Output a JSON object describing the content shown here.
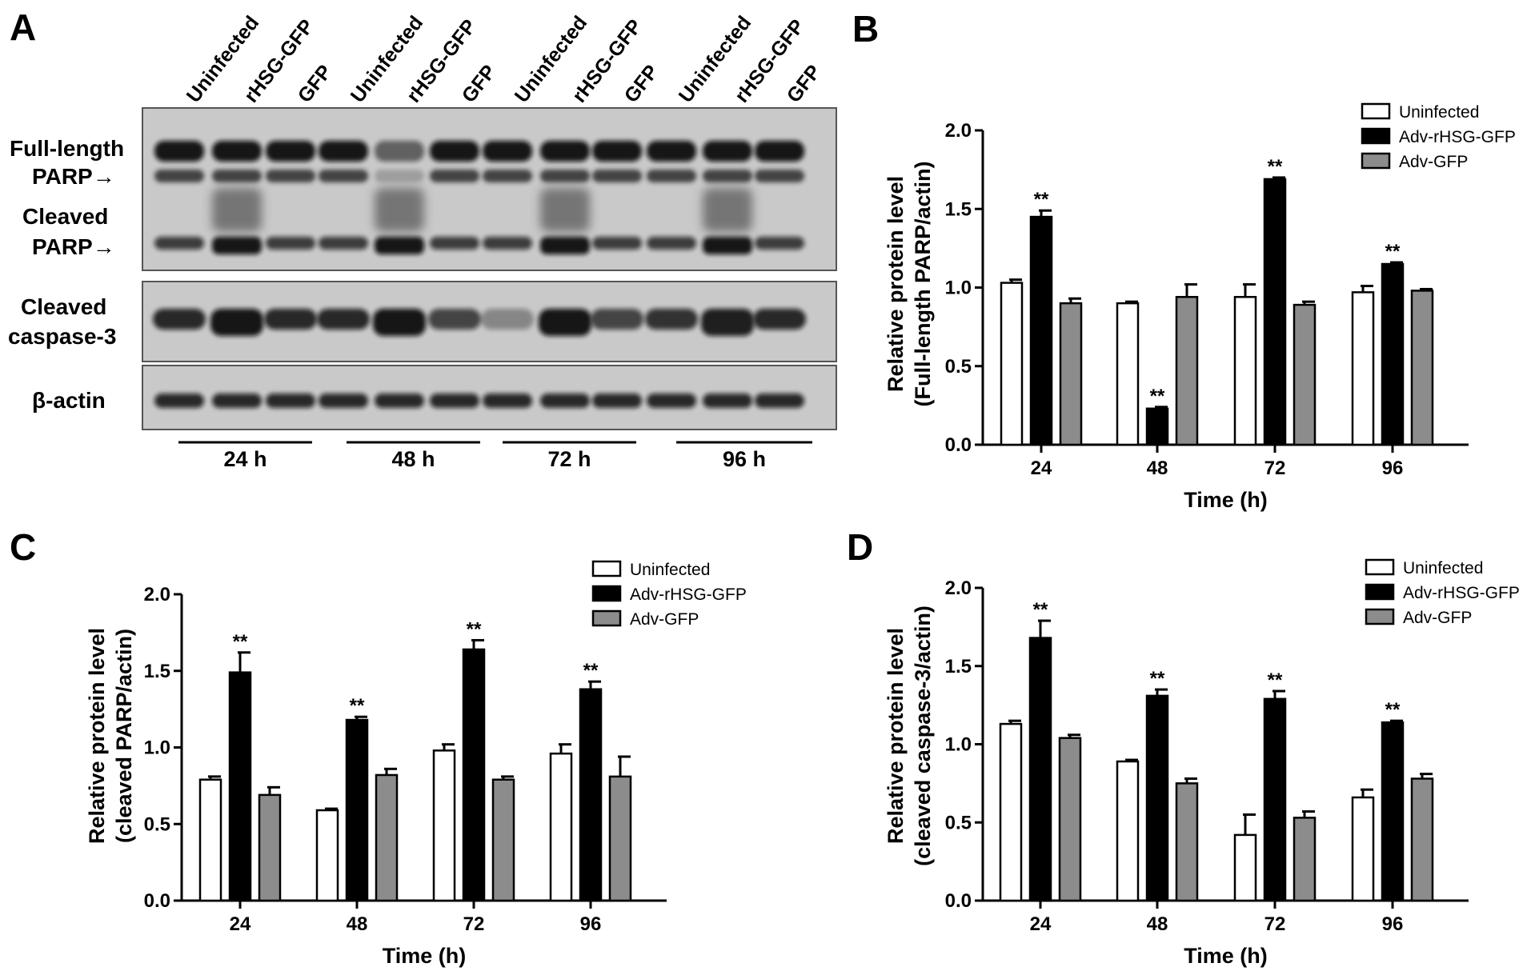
{
  "panel_letters": [
    "A",
    "B",
    "C",
    "D"
  ],
  "western_blot": {
    "lanes": [
      "Uninfected",
      "rHSG-GFP",
      "GFP",
      "Uninfected",
      "rHSG-GFP",
      "GFP",
      "Uninfected",
      "rHSG-GFP",
      "GFP",
      "Uninfected",
      "rHSG-GFP",
      "GFP"
    ],
    "row_labels": {
      "full_length_1": "Full-length",
      "full_length_2": "PARP→",
      "cleaved_parp_1": "Cleaved",
      "cleaved_parp_2": "PARP→",
      "cleaved_casp_1": "Cleaved",
      "cleaved_casp_2": "caspase-3",
      "actin": "β-actin"
    },
    "time_groups": [
      "24  h",
      "48  h",
      "72  h",
      "96  h"
    ]
  },
  "chart_data": [
    {
      "panel": "B",
      "type": "bar",
      "categories": [
        "24",
        "48",
        "72",
        "96"
      ],
      "series": [
        {
          "name": "Uninfected",
          "values": [
            1.03,
            0.9,
            0.94,
            0.97
          ],
          "errors": [
            0.02,
            0.01,
            0.08,
            0.04
          ]
        },
        {
          "name": "Adv-rHSG-GFP",
          "values": [
            1.45,
            0.23,
            1.69,
            1.15
          ],
          "errors": [
            0.04,
            0.01,
            0.01,
            0.01
          ]
        },
        {
          "name": "Adv-GFP",
          "values": [
            0.9,
            0.94,
            0.89,
            0.98
          ],
          "errors": [
            0.03,
            0.08,
            0.02,
            0.01
          ]
        }
      ],
      "annotations": [
        "**",
        "**",
        "**",
        "**"
      ],
      "xlabel": "Time  (h)",
      "ylabel": [
        "Relative protein level",
        "(Full-length PARP/actin)"
      ],
      "ylim": [
        0,
        2.0
      ],
      "yticks": [
        "0.0",
        "0.5",
        "1.0",
        "1.5",
        "2.0"
      ],
      "legend_position": "top-right"
    },
    {
      "panel": "C",
      "type": "bar",
      "categories": [
        "24",
        "48",
        "72",
        "96"
      ],
      "series": [
        {
          "name": "Uninfected",
          "values": [
            0.79,
            0.59,
            0.98,
            0.96
          ],
          "errors": [
            0.02,
            0.01,
            0.04,
            0.06
          ]
        },
        {
          "name": "Adv-rHSG-GFP",
          "values": [
            1.49,
            1.18,
            1.64,
            1.38
          ],
          "errors": [
            0.13,
            0.02,
            0.06,
            0.05
          ]
        },
        {
          "name": "Adv-GFP",
          "values": [
            0.69,
            0.82,
            0.79,
            0.81
          ],
          "errors": [
            0.05,
            0.04,
            0.02,
            0.13
          ]
        }
      ],
      "annotations": [
        "**",
        "**",
        "**",
        "**"
      ],
      "xlabel": "Time  (h)",
      "ylabel": [
        "Relative protein level",
        "(cleaved PARP/actin)"
      ],
      "ylim": [
        0,
        2.0
      ],
      "yticks": [
        "0.0",
        "0.5",
        "1.0",
        "1.5",
        "2.0"
      ],
      "legend_position": "top-right"
    },
    {
      "panel": "D",
      "type": "bar",
      "categories": [
        "24",
        "48",
        "72",
        "96"
      ],
      "series": [
        {
          "name": "Uninfected",
          "values": [
            1.13,
            0.89,
            0.42,
            0.66
          ],
          "errors": [
            0.02,
            0.01,
            0.13,
            0.05
          ]
        },
        {
          "name": "Adv-rHSG-GFP",
          "values": [
            1.68,
            1.31,
            1.29,
            1.14
          ],
          "errors": [
            0.11,
            0.04,
            0.05,
            0.01
          ]
        },
        {
          "name": "Adv-GFP",
          "values": [
            1.04,
            0.75,
            0.53,
            0.78
          ],
          "errors": [
            0.02,
            0.03,
            0.04,
            0.03
          ]
        }
      ],
      "annotations": [
        "**",
        "**",
        "**",
        "**"
      ],
      "xlabel": "Time  (h)",
      "ylabel": [
        "Relative protein level",
        "(cleaved caspase-3/actin)"
      ],
      "ylim": [
        0,
        2.0
      ],
      "yticks": [
        "0.0",
        "0.5",
        "1.0",
        "1.5",
        "2.0"
      ],
      "legend_position": "top-right"
    }
  ],
  "colors": {
    "uninfected": "#ffffff",
    "adv_rhsg_gfp": "#000000",
    "adv_gfp": "#8c8c8c"
  }
}
